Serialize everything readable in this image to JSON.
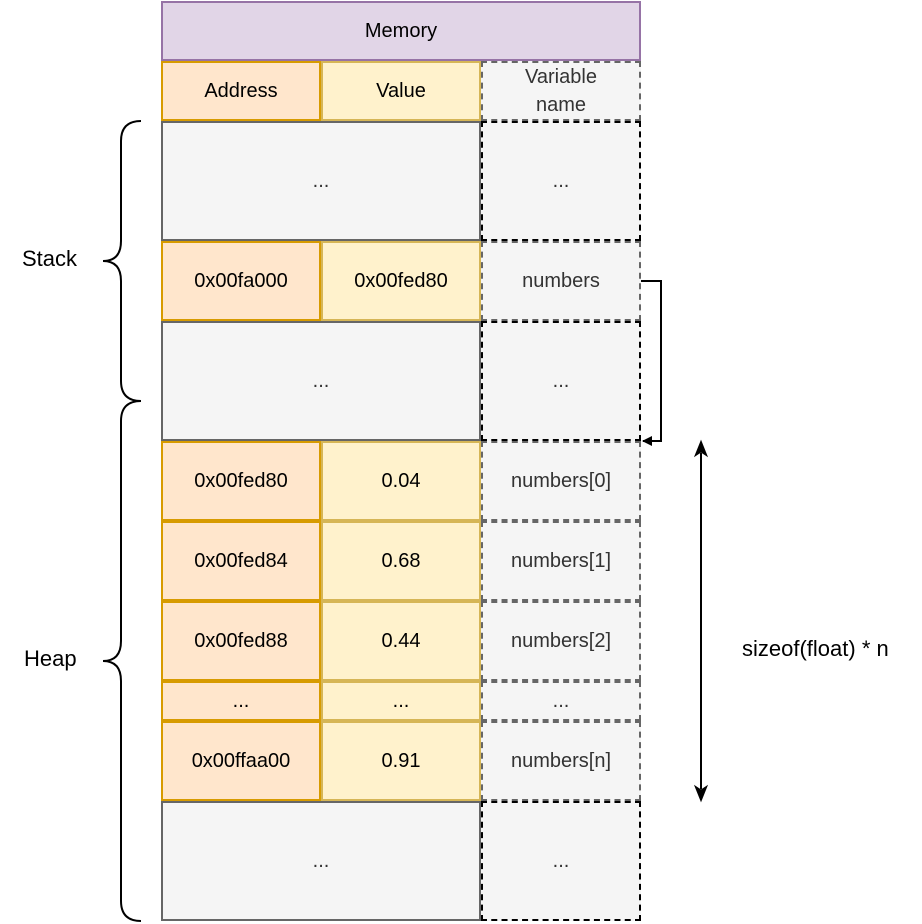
{
  "title": "Memory",
  "headers": {
    "address": "Address",
    "value": "Value",
    "name": "Variable\nname"
  },
  "ellipsis": "...",
  "stack_label": "Stack",
  "heap_label": "Heap",
  "pointer": {
    "address": "0x00fa000",
    "value": "0x00fed80",
    "name": "numbers"
  },
  "heap_rows": [
    {
      "address": "0x00fed80",
      "value": "0.04",
      "name": "numbers[0]"
    },
    {
      "address": "0x00fed84",
      "value": "0.68",
      "name": "numbers[1]"
    },
    {
      "address": "0x00fed88",
      "value": "0.44",
      "name": "numbers[2]"
    },
    {
      "address": "...",
      "value": "...",
      "name": "..."
    },
    {
      "address": "0x00ffaa00",
      "value": "0.91",
      "name": "numbers[n]"
    }
  ],
  "size_label": "sizeof(float) * n",
  "colors": {
    "title_fill": "#e1d5e7",
    "title_stroke": "#9673a6",
    "address_fill": "#ffe6cc",
    "address_stroke": "#d79b00",
    "value_fill": "#fff2cc",
    "value_stroke": "#d6b656",
    "name_fill": "#f5f5f5",
    "name_stroke": "#666666"
  }
}
